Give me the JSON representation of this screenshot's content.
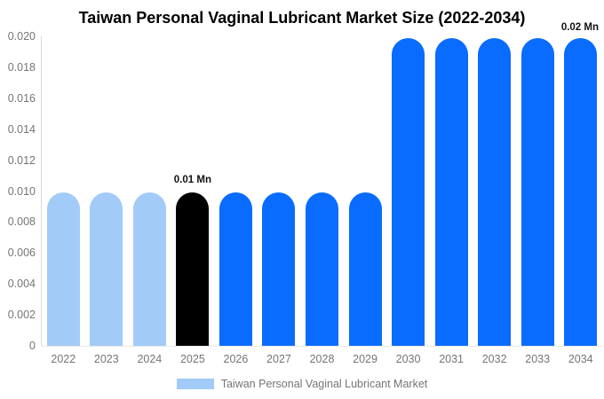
{
  "chart": {
    "title": "Taiwan Personal Vaginal Lubricant Market Size (2022-2034)"
  },
  "chart_data": {
    "type": "bar",
    "title": "Taiwan Personal Vaginal Lubricant Market Size (2022-2034)",
    "categories": [
      "2022",
      "2023",
      "2024",
      "2025",
      "2026",
      "2027",
      "2028",
      "2029",
      "2030",
      "2031",
      "2032",
      "2033",
      "2034"
    ],
    "series": [
      {
        "name": "Taiwan Personal Vaginal Lubricant Market",
        "values": [
          0.0099,
          0.0099,
          0.0099,
          0.0099,
          0.0099,
          0.0099,
          0.0099,
          0.0099,
          0.0199,
          0.0199,
          0.0199,
          0.0199,
          0.0199
        ]
      }
    ],
    "bar_colors": [
      "#a2cbf8",
      "#a2cbf8",
      "#a2cbf8",
      "#000000",
      "#0a6cff",
      "#0a6cff",
      "#0a6cff",
      "#0a6cff",
      "#0a6cff",
      "#0a6cff",
      "#0a6cff",
      "#0a6cff",
      "#0a6cff"
    ],
    "ylim": [
      0,
      0.02
    ],
    "y_ticks": [
      "0.020",
      "0.018",
      "0.016",
      "0.014",
      "0.012",
      "0.010",
      "0.008",
      "0.006",
      "0.004",
      "0.002",
      "0"
    ],
    "xlabel": "",
    "ylabel": "",
    "grid": false,
    "legend_position": "bottom",
    "annotations": [
      {
        "category": "2025",
        "text": "0.01 Mn",
        "placement": "above-bar"
      },
      {
        "category": "2034",
        "text": "0.02 Mn",
        "placement": "top-right"
      }
    ]
  },
  "legend": {
    "label": "Taiwan Personal Vaginal Lubricant Market",
    "swatch_color": "#a2cbf8"
  },
  "colors": {
    "background": "#ffffff",
    "title": "#000000",
    "axis_line": "#d9d9d9",
    "baseline": "#e8e8e8",
    "tick_label": "#757575",
    "annotation": "#111111",
    "bar_light_blue": "#a2cbf8",
    "bar_black": "#000000",
    "bar_blue": "#0a6cff"
  }
}
